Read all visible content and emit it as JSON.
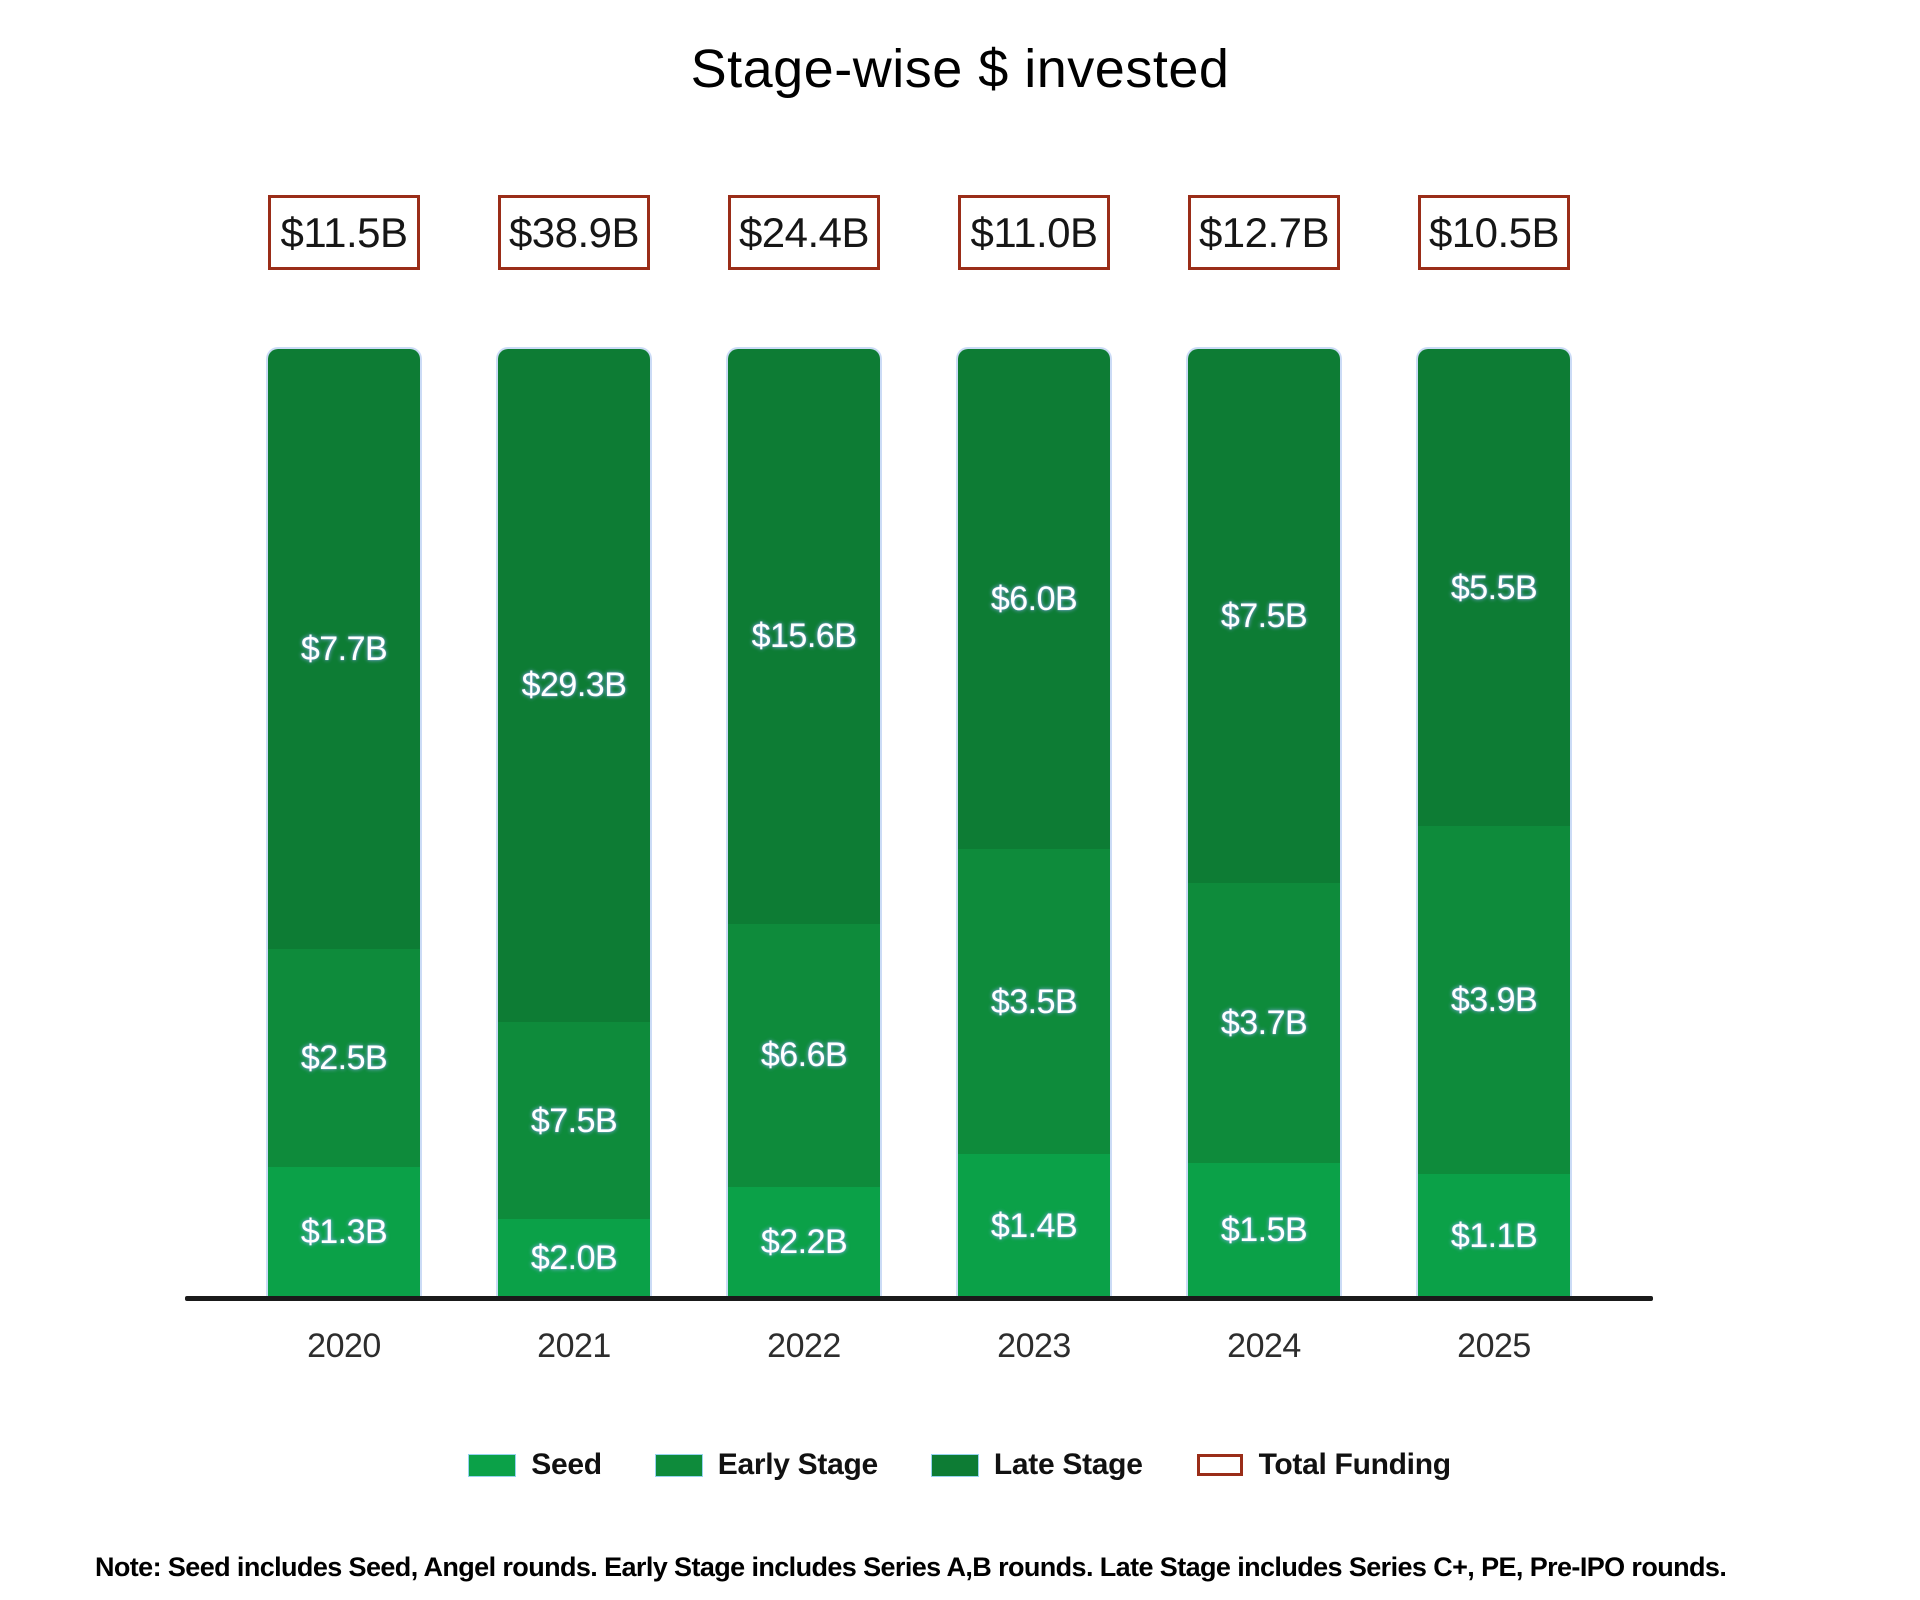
{
  "title": "Stage-wise $ invested",
  "note": "Note: Seed includes Seed, Angel rounds. Early Stage includes Series A,B rounds. Late Stage includes Series C+, PE, Pre-IPO rounds.",
  "colors": {
    "seed": "#0BA148",
    "early": "#0E8B3B",
    "late": "#0D7C34",
    "total_border": "#9A2D18",
    "axis": "#1a1a1a",
    "bar_label_text": "#ffffff",
    "title_text": "#000000"
  },
  "legend": [
    {
      "label": "Seed",
      "key": "seed",
      "swatch": "fill"
    },
    {
      "label": "Early Stage",
      "key": "early",
      "swatch": "fill"
    },
    {
      "label": "Late Stage",
      "key": "late",
      "swatch": "fill"
    },
    {
      "label": "Total Funding",
      "key": "total_border",
      "swatch": "outline"
    }
  ],
  "chart_data": {
    "type": "bar",
    "stacked": true,
    "bars_normalized_to_equal_height": true,
    "unit": "USD billions",
    "title": "Stage-wise $ invested",
    "xlabel": "",
    "ylabel": "",
    "grid": false,
    "legend_position": "bottom",
    "categories": [
      "2020",
      "2021",
      "2022",
      "2023",
      "2024",
      "2025"
    ],
    "series": [
      {
        "name": "Seed",
        "key": "seed",
        "values": [
          1.3,
          2.0,
          2.2,
          1.4,
          1.5,
          1.1
        ],
        "labels": [
          "$1.3B",
          "$2.0B",
          "$2.2B",
          "$1.4B",
          "$1.5B",
          "$1.1B"
        ]
      },
      {
        "name": "Early Stage",
        "key": "early",
        "values": [
          2.5,
          7.5,
          6.6,
          3.5,
          3.7,
          3.9
        ],
        "labels": [
          "$2.5B",
          "$7.5B",
          "$6.6B",
          "$3.5B",
          "$3.7B",
          "$3.9B"
        ]
      },
      {
        "name": "Late Stage",
        "key": "late",
        "values": [
          7.7,
          29.3,
          15.6,
          6.0,
          7.5,
          5.5
        ],
        "labels": [
          "$7.7B",
          "$29.3B",
          "$15.6B",
          "$6.0B",
          "$7.5B",
          "$5.5B"
        ]
      }
    ],
    "totals": {
      "name": "Total Funding",
      "values": [
        11.5,
        38.9,
        24.4,
        11.0,
        12.7,
        10.5
      ],
      "labels": [
        "$11.5B",
        "$38.9B",
        "$24.4B",
        "$11.0B",
        "$12.7B",
        "$10.5B"
      ]
    }
  }
}
